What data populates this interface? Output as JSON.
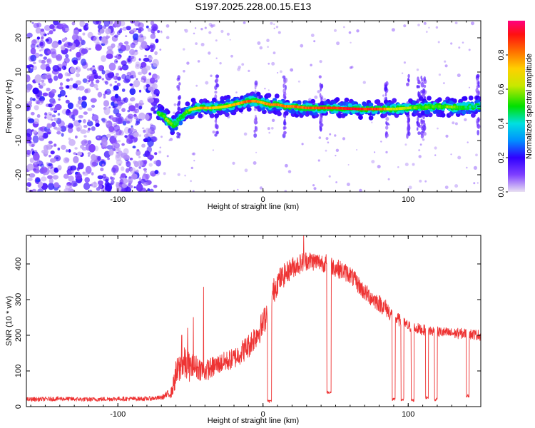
{
  "figure": {
    "title": "S197.2025.228.00.15.E13"
  },
  "colorbar": {
    "label": "Normalized spectral amplitude",
    "ticks": [
      "0.0",
      "0.2",
      "0.4",
      "0.6",
      "0.8"
    ],
    "tick_values": [
      0.0,
      0.2,
      0.4,
      0.6,
      0.8
    ],
    "range": [
      0,
      1
    ],
    "colors": [
      "#e0d8ee",
      "#3000ff",
      "#0090ff",
      "#00e0e0",
      "#00e000",
      "#e0e000",
      "#ff8000",
      "#ff0000",
      "#ff0080"
    ]
  },
  "chart_data": [
    {
      "type": "heatmap",
      "name": "spectrogram",
      "title": "S197.2025.228.00.15.E13",
      "xlabel": "Height of straight line (km)",
      "ylabel": "Frequency (Hz)",
      "xlim": [
        -163,
        150
      ],
      "ylim": [
        -25,
        25
      ],
      "xticks": [
        -100,
        0,
        100
      ],
      "xtick_labels": [
        "-100",
        "0",
        "100"
      ],
      "yticks": [
        -20,
        -10,
        0,
        10,
        20
      ],
      "ytick_labels": [
        "-20",
        "-10",
        "0",
        "10",
        "20"
      ],
      "noise_region_x": [
        -163,
        -72
      ],
      "ridge": {
        "x": [
          -72,
          -68,
          -65,
          -62,
          -60,
          -57,
          -54,
          -50,
          -45,
          -40,
          -35,
          -30,
          -25,
          -20,
          -15,
          -10,
          -5,
          0,
          5,
          10,
          15,
          20,
          30,
          40,
          50,
          60,
          70,
          80,
          90,
          100,
          110,
          120,
          130,
          140,
          150
        ],
        "y": [
          -2,
          -3,
          -4.5,
          -5.5,
          -5,
          -3.5,
          -2,
          -1,
          -0.5,
          -0.5,
          -0.5,
          -0.3,
          0,
          0.5,
          1,
          1.5,
          1.5,
          1,
          0.5,
          0.5,
          0,
          0,
          -0.5,
          -0.5,
          -0.5,
          -0.7,
          -0.8,
          -0.8,
          -0.8,
          -0.5,
          -0.3,
          0,
          -0.2,
          -0.2,
          0
        ],
        "amplitude": [
          0.5,
          0.55,
          0.6,
          0.5,
          0.45,
          0.5,
          0.55,
          0.6,
          0.7,
          0.8,
          0.75,
          0.7,
          0.7,
          0.75,
          0.8,
          0.85,
          0.8,
          0.75,
          0.8,
          0.82,
          0.8,
          0.82,
          0.85,
          0.85,
          0.9,
          0.92,
          0.9,
          0.88,
          0.65,
          0.6,
          0.55,
          0.5,
          0.6,
          0.45,
          0.4
        ]
      },
      "spike_columns_x": [
        -58,
        -32,
        -5,
        15,
        40,
        85,
        100,
        107,
        109,
        111,
        148
      ]
    },
    {
      "type": "line",
      "name": "snr",
      "xlabel": "Height of straight line (km)",
      "ylabel": "SNR (10 * v/v)",
      "xlim": [
        -163,
        150
      ],
      "ylim": [
        0,
        480
      ],
      "xticks": [
        -100,
        0,
        100
      ],
      "xtick_labels": [
        "-100",
        "0",
        "100"
      ],
      "yticks": [
        0,
        100,
        200,
        300,
        400
      ],
      "ytick_labels": [
        "0",
        "100",
        "200",
        "300",
        "400"
      ],
      "color": "#ee3333",
      "series": [
        {
          "name": "SNR",
          "x": [
            -163,
            -140,
            -120,
            -100,
            -80,
            -70,
            -63,
            -60,
            -55,
            -50,
            -45,
            -40,
            -35,
            -30,
            -20,
            -10,
            0,
            5,
            10,
            20,
            30,
            40,
            45,
            50,
            60,
            70,
            80,
            85,
            90,
            95,
            100,
            110,
            120,
            130,
            140,
            150
          ],
          "values": [
            20,
            22,
            20,
            22,
            22,
            25,
            40,
            90,
            120,
            110,
            110,
            100,
            110,
            120,
            135,
            170,
            230,
            300,
            350,
            390,
            410,
            405,
            400,
            390,
            370,
            320,
            290,
            275,
            250,
            240,
            225,
            215,
            210,
            205,
            205,
            200
          ],
          "noise": [
            6,
            6,
            6,
            6,
            6,
            6,
            15,
            40,
            50,
            40,
            35,
            30,
            30,
            28,
            30,
            35,
            40,
            40,
            35,
            30,
            28,
            26,
            26,
            26,
            25,
            25,
            25,
            25,
            20,
            18,
            16,
            15,
            15,
            15,
            15,
            15
          ]
        }
      ],
      "spikes": [
        {
          "x": -41,
          "value": 335
        },
        {
          "x": -48,
          "value": 250
        },
        {
          "x": -52,
          "value": 220
        },
        {
          "x": -56,
          "value": 200
        },
        {
          "x": 28,
          "value": 480
        }
      ],
      "dropouts": [
        {
          "x_start": 3,
          "x_end": 6,
          "value": 15
        },
        {
          "x_start": 44,
          "x_end": 47,
          "value": 40
        },
        {
          "x_start": 89,
          "x_end": 91,
          "value": 20
        },
        {
          "x_start": 95,
          "x_end": 97,
          "value": 20
        },
        {
          "x_start": 102,
          "x_end": 104,
          "value": 18
        },
        {
          "x_start": 112,
          "x_end": 114,
          "value": 25
        },
        {
          "x_start": 118,
          "x_end": 120,
          "value": 20
        },
        {
          "x_start": 140,
          "x_end": 142,
          "value": 30
        }
      ]
    }
  ]
}
